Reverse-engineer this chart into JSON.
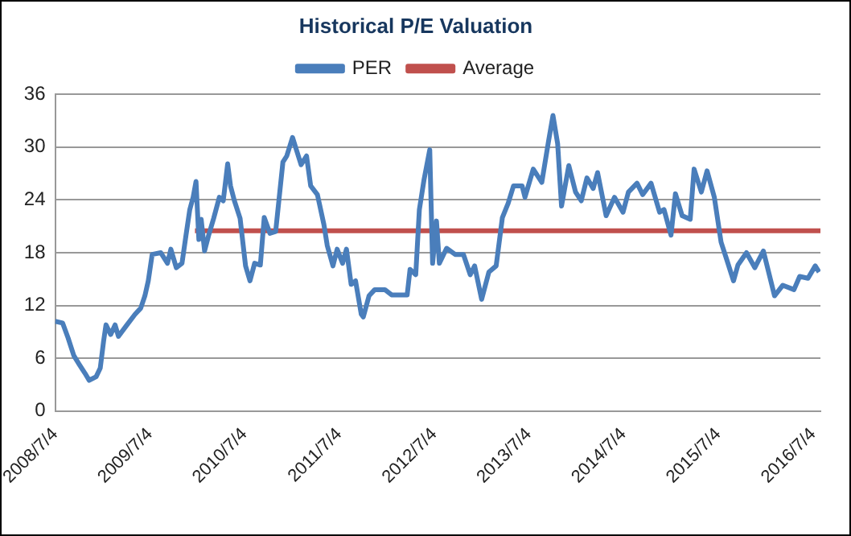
{
  "chart_data": {
    "type": "line",
    "title": "Historical P/E Valuation",
    "legend": "top",
    "grid": "y",
    "marker": "none",
    "line_style": "solid",
    "ylim": [
      0,
      36
    ],
    "yticks": [
      0,
      6,
      12,
      18,
      24,
      30,
      36
    ],
    "xlim": [
      "2008-07-04",
      "2016-08-01"
    ],
    "xticks": [
      {
        "value": "2008-07-04",
        "label": "2008/7/4"
      },
      {
        "value": "2009-07-04",
        "label": "2009/7/4"
      },
      {
        "value": "2010-07-04",
        "label": "2010/7/4"
      },
      {
        "value": "2011-07-04",
        "label": "2011/7/4"
      },
      {
        "value": "2012-07-04",
        "label": "2012/7/4"
      },
      {
        "value": "2013-07-04",
        "label": "2013/7/4"
      },
      {
        "value": "2014-07-04",
        "label": "2014/7/4"
      },
      {
        "value": "2015-07-04",
        "label": "2015/7/4"
      },
      {
        "value": "2016-07-04",
        "label": "2016/7/4"
      }
    ],
    "series": [
      {
        "name": "PER",
        "color": "#4a7ebb",
        "x": [
          "2008-07-04",
          "2008-08-02",
          "2008-08-23",
          "2008-09-14",
          "2008-10-05",
          "2008-10-27",
          "2008-11-12",
          "2008-12-09",
          "2008-12-25",
          "2009-01-07",
          "2009-01-16",
          "2009-02-03",
          "2009-02-20",
          "2009-03-05",
          "2009-04-07",
          "2009-05-08",
          "2009-05-30",
          "2009-06-15",
          "2009-06-28",
          "2009-07-13",
          "2009-08-15",
          "2009-09-10",
          "2009-09-23",
          "2009-10-14",
          "2009-11-05",
          "2009-11-20",
          "2009-12-05",
          "2009-12-18",
          "2009-12-29",
          "2010-01-09",
          "2010-01-18",
          "2010-01-31",
          "2010-02-15",
          "2010-03-07",
          "2010-03-29",
          "2010-04-13",
          "2010-04-30",
          "2010-05-11",
          "2010-05-26",
          "2010-06-17",
          "2010-07-08",
          "2010-07-25",
          "2010-08-12",
          "2010-09-03",
          "2010-09-18",
          "2010-10-10",
          "2010-11-01",
          "2010-11-29",
          "2010-12-14",
          "2011-01-05",
          "2011-01-20",
          "2011-02-07",
          "2011-02-28",
          "2011-03-16",
          "2011-04-11",
          "2011-05-06",
          "2011-05-19",
          "2011-06-10",
          "2011-06-26",
          "2011-07-17",
          "2011-08-01",
          "2011-08-19",
          "2011-09-05",
          "2011-09-27",
          "2011-10-05",
          "2011-10-27",
          "2011-11-18",
          "2011-12-27",
          "2012-01-22",
          "2012-03-22",
          "2012-04-02",
          "2012-04-24",
          "2012-05-08",
          "2012-05-26",
          "2012-06-17",
          "2012-06-28",
          "2012-07-13",
          "2012-07-24",
          "2012-08-21",
          "2012-09-23",
          "2012-10-25",
          "2012-11-20",
          "2012-12-07",
          "2013-01-03",
          "2013-01-31",
          "2013-02-28",
          "2013-03-24",
          "2013-04-15",
          "2013-05-06",
          "2013-06-08",
          "2013-06-19",
          "2013-07-21",
          "2013-08-23",
          "2013-09-18",
          "2013-10-05",
          "2013-10-23",
          "2013-11-07",
          "2013-12-05",
          "2013-12-31",
          "2014-01-22",
          "2014-02-13",
          "2014-03-09",
          "2014-03-26",
          "2014-04-28",
          "2014-05-30",
          "2014-07-02",
          "2014-07-23",
          "2014-08-25",
          "2014-09-16",
          "2014-10-18",
          "2014-11-20",
          "2014-12-07",
          "2015-01-03",
          "2015-01-20",
          "2015-02-15",
          "2015-03-18",
          "2015-04-02",
          "2015-04-30",
          "2015-05-22",
          "2015-06-19",
          "2015-07-15",
          "2015-08-06",
          "2015-09-01",
          "2015-09-18",
          "2015-10-21",
          "2015-11-22",
          "2015-12-25",
          "2016-02-06",
          "2016-03-09",
          "2016-04-21",
          "2016-05-13",
          "2016-06-14",
          "2016-07-12",
          "2016-07-27"
        ],
        "values": [
          10.2,
          10.0,
          8.3,
          6.3,
          5.3,
          4.3,
          3.5,
          3.9,
          4.9,
          8.0,
          9.8,
          8.7,
          9.8,
          8.5,
          9.8,
          11.0,
          11.7,
          13.1,
          14.8,
          17.8,
          18.0,
          16.8,
          18.4,
          16.3,
          16.8,
          19.9,
          22.9,
          24.3,
          26.1,
          19.5,
          21.8,
          18.2,
          19.9,
          21.9,
          24.3,
          23.9,
          28.1,
          25.6,
          23.9,
          21.9,
          16.5,
          14.8,
          16.8,
          16.6,
          22.0,
          20.2,
          20.4,
          28.3,
          29.0,
          31.1,
          29.7,
          28.0,
          29.0,
          25.6,
          24.6,
          21.2,
          18.8,
          16.5,
          18.4,
          16.8,
          18.4,
          14.4,
          14.8,
          11.0,
          10.7,
          13.1,
          13.8,
          13.8,
          13.2,
          13.2,
          16.1,
          15.5,
          22.9,
          26.3,
          29.7,
          16.8,
          21.6,
          16.8,
          18.5,
          17.8,
          17.8,
          15.5,
          16.5,
          12.7,
          15.8,
          16.5,
          22.0,
          23.6,
          25.6,
          25.6,
          24.3,
          27.5,
          26.0,
          30.7,
          33.6,
          30.4,
          23.3,
          27.9,
          24.9,
          23.9,
          26.5,
          25.3,
          27.1,
          22.2,
          24.3,
          22.6,
          24.9,
          25.9,
          24.6,
          25.9,
          22.6,
          22.9,
          20.0,
          24.7,
          22.2,
          21.8,
          27.5,
          24.9,
          27.3,
          24.3,
          19.2,
          17.2,
          14.8,
          16.6,
          18.0,
          16.3,
          18.2,
          13.1,
          14.3,
          13.8,
          15.3,
          15.1,
          16.5,
          15.8
        ]
      },
      {
        "name": "Average",
        "color": "#c0504d",
        "x": [
          "2009-12-25",
          "2016-08-01"
        ],
        "values": [
          20.5,
          20.5
        ]
      }
    ]
  }
}
